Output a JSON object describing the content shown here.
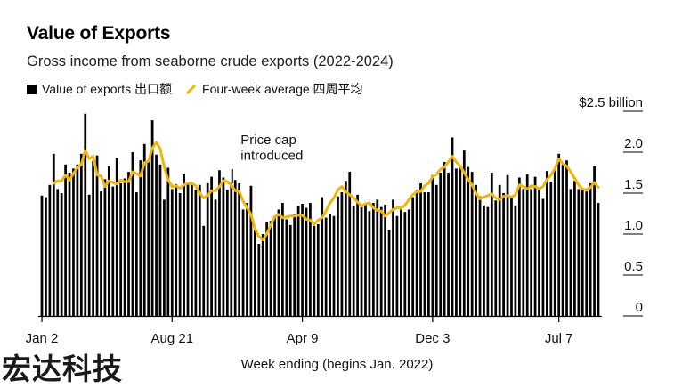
{
  "title": "Value of Exports",
  "subtitle": "Gross income from seaborne crude exports (2022-2024)",
  "legend": {
    "bars_label": "Value of exports 出口额",
    "line_label": "Four-week average 四周平均"
  },
  "colors": {
    "bars": "#000000",
    "line": "#f2b705",
    "axis": "#000000"
  },
  "watermark": "宏达科技",
  "chart_data": {
    "type": "bar",
    "title": "Value of Exports",
    "subtitle": "Gross income from seaborne crude exports (2022-2024)",
    "xlabel": "Week ending (begins Jan. 2022)",
    "ylabel": "",
    "ylim": [
      0,
      2.5
    ],
    "y_ticks": [
      {
        "value": 0,
        "label": "0"
      },
      {
        "value": 0.5,
        "label": "0.5"
      },
      {
        "value": 1.0,
        "label": "1.0"
      },
      {
        "value": 1.5,
        "label": "1.5"
      },
      {
        "value": 2.0,
        "label": "2.0"
      },
      {
        "value": 2.5,
        "label": "$2.5 billion"
      }
    ],
    "x_ticks": [
      {
        "index": 0,
        "label": "Jan 2"
      },
      {
        "index": 33,
        "label": "Aug 21"
      },
      {
        "index": 66,
        "label": "Apr 9"
      },
      {
        "index": 99,
        "label": "Dec 3"
      },
      {
        "index": 131,
        "label": "Jul 7"
      }
    ],
    "annotation": {
      "index": 48,
      "lines": [
        "Price cap",
        "introduced"
      ]
    },
    "grid": false,
    "legend_position": "top-left",
    "series": [
      {
        "name": "Value of exports 出口额",
        "type": "bar",
        "values": [
          1.47,
          1.45,
          1.6,
          1.98,
          1.55,
          1.5,
          1.85,
          1.75,
          1.8,
          1.85,
          1.98,
          2.47,
          1.48,
          1.89,
          1.96,
          1.52,
          1.67,
          1.83,
          1.58,
          1.93,
          1.62,
          1.68,
          1.76,
          2.0,
          1.51,
          1.9,
          2.1,
          1.9,
          2.39,
          1.97,
          1.85,
          1.42,
          1.81,
          1.55,
          1.61,
          1.5,
          1.73,
          1.63,
          1.6,
          1.54,
          1.6,
          1.1,
          1.62,
          1.7,
          1.42,
          1.78,
          1.69,
          1.54,
          1.62,
          1.66,
          1.62,
          1.3,
          1.38,
          1.59,
          1.08,
          0.88,
          1.0,
          1.15,
          1.16,
          1.22,
          1.3,
          1.38,
          1.18,
          1.11,
          1.25,
          1.34,
          1.37,
          1.32,
          1.38,
          1.1,
          1.12,
          1.45,
          1.2,
          1.25,
          1.22,
          1.46,
          1.51,
          1.65,
          1.76,
          1.34,
          1.48,
          1.34,
          1.37,
          1.28,
          1.38,
          1.42,
          1.33,
          1.36,
          1.05,
          1.42,
          1.22,
          1.3,
          1.27,
          1.3,
          1.45,
          1.54,
          1.62,
          1.51,
          1.51,
          1.72,
          1.6,
          1.75,
          1.88,
          1.75,
          2.18,
          1.8,
          1.83,
          2.02,
          1.82,
          1.76,
          1.6,
          1.46,
          1.35,
          1.33,
          1.75,
          1.41,
          1.6,
          1.5,
          1.72,
          1.44,
          1.35,
          1.69,
          1.55,
          1.73,
          1.55,
          1.7,
          1.55,
          1.43,
          1.77,
          1.64,
          1.8,
          1.98,
          1.86,
          1.9,
          1.55,
          1.65,
          1.55,
          1.56,
          1.52,
          1.62,
          1.83,
          1.38
        ]
      },
      {
        "name": "Four-week average 四周平均",
        "type": "line",
        "values": [
          null,
          null,
          null,
          1.62,
          1.65,
          1.65,
          1.72,
          1.66,
          1.74,
          1.81,
          1.85,
          2.02,
          1.92,
          1.95,
          1.72,
          1.71,
          1.58,
          1.65,
          1.63,
          1.61,
          1.66,
          1.64,
          1.64,
          1.76,
          1.74,
          1.71,
          1.87,
          1.89,
          2.05,
          2.12,
          2.04,
          1.82,
          1.66,
          1.58,
          1.59,
          1.56,
          1.6,
          1.62,
          1.62,
          1.59,
          1.5,
          1.44,
          1.47,
          1.53,
          1.53,
          1.58,
          1.65,
          1.64,
          1.6,
          1.53,
          1.52,
          1.4,
          1.32,
          1.24,
          1.06,
          0.97,
          0.93,
          1.0,
          1.11,
          1.21,
          1.24,
          1.2,
          1.21,
          1.22,
          1.22,
          1.23,
          1.23,
          1.18,
          1.17,
          1.12,
          1.17,
          1.2,
          1.28,
          1.38,
          1.44,
          1.54,
          1.58,
          1.52,
          1.48,
          1.44,
          1.39,
          1.34,
          1.37,
          1.38,
          1.32,
          1.29,
          1.28,
          1.22,
          1.26,
          1.3,
          1.32,
          1.32,
          1.35,
          1.42,
          1.48,
          1.52,
          1.52,
          1.59,
          1.62,
          1.7,
          1.73,
          1.79,
          1.82,
          1.88,
          1.95,
          1.88,
          1.83,
          1.75,
          1.67,
          1.6,
          1.5,
          1.43,
          1.45,
          1.47,
          1.49,
          1.44,
          1.42,
          1.46,
          1.47,
          1.45,
          1.48,
          1.6,
          1.58,
          1.55,
          1.59,
          1.58,
          1.55,
          1.58,
          1.67,
          1.72,
          1.8,
          1.92,
          1.86,
          1.83,
          1.76,
          1.68,
          1.6,
          1.55,
          1.54,
          1.57,
          1.63,
          1.57
        ]
      }
    ]
  }
}
